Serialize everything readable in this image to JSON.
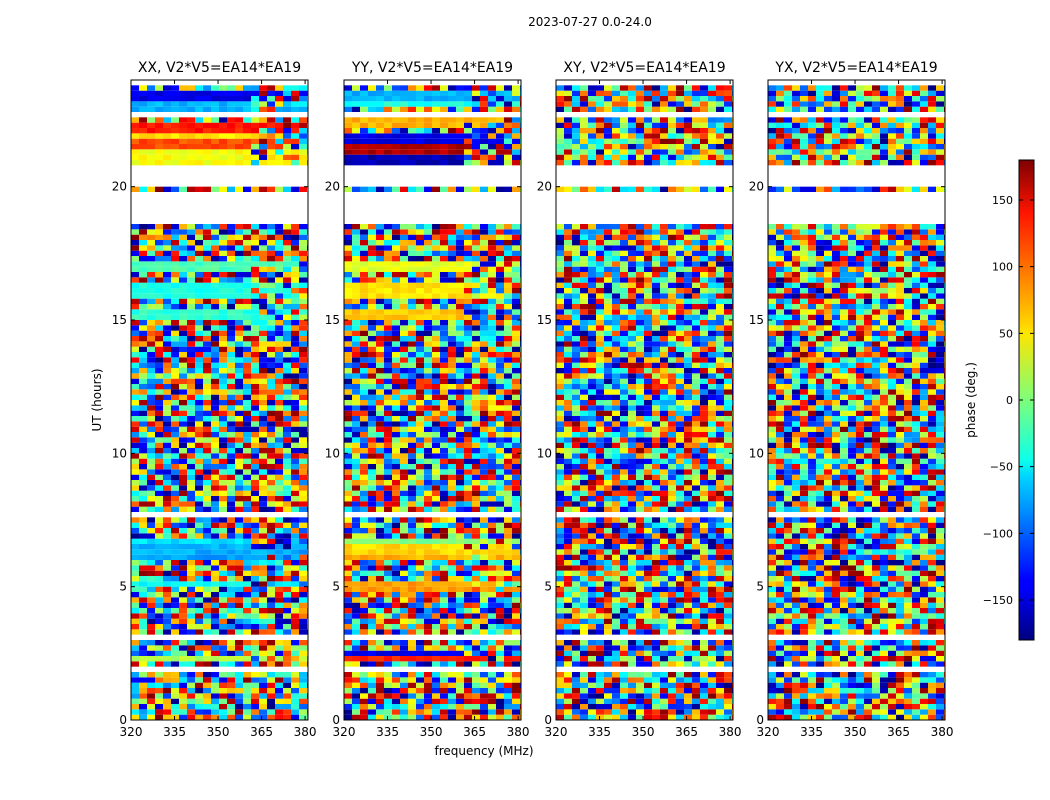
{
  "chart_data": {
    "type": "heatmap",
    "title": "2023-07-27 0.0-24.0",
    "xlabel": "frequency (MHz)",
    "ylabel": "UT (hours)",
    "xlim": [
      320,
      381
    ],
    "ylim": [
      0,
      24
    ],
    "xticks": [
      "320",
      "335",
      "350",
      "365",
      "380"
    ],
    "yticks": [
      "0",
      "5",
      "10",
      "15",
      "20"
    ],
    "panels": [
      {
        "title": "XX, V2*V5=EA14*EA19",
        "pol": "XX"
      },
      {
        "title": "YY, V2*V5=EA14*EA19",
        "pol": "YY"
      },
      {
        "title": "XY, V2*V5=EA14*EA19",
        "pol": "XY"
      },
      {
        "title": "YX, V2*V5=EA14*EA19",
        "pol": "YX"
      }
    ],
    "colorbar": {
      "label": "phase (deg.)",
      "range": [
        -180,
        180
      ],
      "ticks": [
        "150",
        "100",
        "50",
        "0",
        "−50",
        "−100",
        "−150"
      ],
      "tick_values": [
        150,
        100,
        50,
        0,
        -50,
        -100,
        -150
      ],
      "colormap": "jet"
    },
    "flagged_hours": [
      [
        0.75,
        0.9
      ],
      [
        1.35,
        1.5
      ],
      [
        1.9,
        2.05
      ],
      [
        3.05,
        3.25
      ],
      [
        3.6,
        3.7
      ],
      [
        4.95,
        5.05
      ],
      [
        7.65,
        7.75
      ],
      [
        11.7,
        11.85
      ],
      [
        14.9,
        15.0
      ],
      [
        16.5,
        16.6
      ],
      [
        17.9,
        18.0
      ],
      [
        18.3,
        18.45
      ],
      [
        18.65,
        19.85
      ],
      [
        20.0,
        20.7
      ],
      [
        22.6,
        22.75
      ]
    ]
  }
}
